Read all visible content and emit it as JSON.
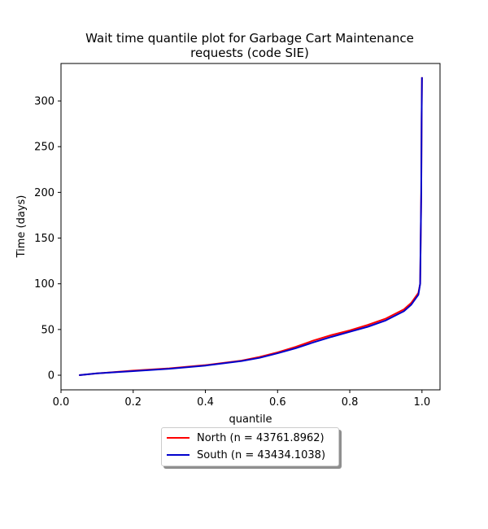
{
  "chart_data": {
    "type": "line",
    "title": [
      "Wait time quantile plot for Garbage Cart Maintenance",
      "requests (code SIE)"
    ],
    "xlabel": "quantile",
    "ylabel": "Time (days)",
    "xlim": [
      0.0,
      1.05
    ],
    "ylim": [
      -16,
      341
    ],
    "xticks": [
      0.0,
      0.2,
      0.4,
      0.6,
      0.8,
      1.0
    ],
    "xtick_labels": [
      "0.0",
      "0.2",
      "0.4",
      "0.6",
      "0.8",
      "1.0"
    ],
    "yticks": [
      0,
      50,
      100,
      150,
      200,
      250,
      300
    ],
    "ytick_labels": [
      "0",
      "50",
      "100",
      "150",
      "200",
      "250",
      "300"
    ],
    "grid": false,
    "legend_position": "below-center",
    "series": [
      {
        "name": "North (n = 43761.8962)",
        "color": "#ff0000",
        "x": [
          0.05,
          0.1,
          0.2,
          0.3,
          0.4,
          0.5,
          0.55,
          0.6,
          0.65,
          0.7,
          0.75,
          0.8,
          0.85,
          0.9,
          0.95,
          0.97,
          0.99,
          0.995,
          0.998,
          0.999,
          1.0
        ],
        "y": [
          0,
          2,
          5,
          7.5,
          11,
          16,
          20,
          25,
          31,
          38,
          44,
          49,
          55,
          62,
          72,
          79,
          90,
          100,
          200,
          280,
          326
        ]
      },
      {
        "name": "South (n = 43434.1038)",
        "color": "#0000cd",
        "x": [
          0.05,
          0.1,
          0.2,
          0.3,
          0.4,
          0.5,
          0.55,
          0.6,
          0.65,
          0.7,
          0.75,
          0.8,
          0.85,
          0.9,
          0.95,
          0.97,
          0.99,
          0.995,
          0.998,
          0.999,
          1.0
        ],
        "y": [
          0,
          2,
          4.5,
          7,
          10.5,
          15.5,
          19,
          24,
          29.5,
          36,
          42,
          47.5,
          53,
          60,
          70,
          77,
          88,
          100,
          200,
          280,
          326
        ]
      }
    ]
  }
}
